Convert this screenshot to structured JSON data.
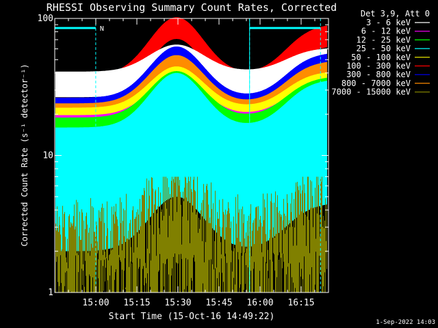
{
  "chart_data": {
    "type": "line",
    "title": "RHESSI Observing Summary Count Rates, Corrected",
    "xlabel": "Start Time (15-Oct-16 14:49:22)",
    "ylabel": "Corrected Count Rate (s⁻¹ detector⁻¹)",
    "yscale": "log",
    "ylim": [
      1,
      100
    ],
    "y_ticks": [
      {
        "v": 1,
        "label": "1"
      },
      {
        "v": 10,
        "label": "10"
      },
      {
        "v": 100,
        "label": "100"
      }
    ],
    "x_range_min": [
      -4.37,
      95.63
    ],
    "x_ticks": [
      {
        "label": "15:00",
        "t": 10.63
      },
      {
        "label": "15:15",
        "t": 25.63
      },
      {
        "label": "15:30",
        "t": 40.63
      },
      {
        "label": "15:45",
        "t": 55.63
      },
      {
        "label": "16:00",
        "t": 70.63
      },
      {
        "label": "16:15",
        "t": 85.63
      }
    ],
    "legend_header": "Det 3,9, Att 0",
    "series": [
      {
        "name": "3 - 6 keV",
        "color": "#ffffff",
        "base": 33,
        "peak": 52,
        "noise": 0.06,
        "lower": false
      },
      {
        "name": "6 - 12 keV",
        "color": "#ff00ff",
        "base": 12,
        "peak": 23,
        "noise": 0.16,
        "lower": true
      },
      {
        "name": "12 - 25 keV",
        "color": "#00ff00",
        "base": 11,
        "peak": 24,
        "noise": 0.18,
        "lower": true
      },
      {
        "name": "25 - 50 keV",
        "color": "#00ffff",
        "base": 8,
        "peak": 20,
        "noise": 0.25,
        "lower": true
      },
      {
        "name": "50 - 100 keV",
        "color": "#ffff00",
        "base": 18,
        "peak": 36,
        "noise": 0.06,
        "lower": false
      },
      {
        "name": "100 - 300 keV",
        "color": "#ff0000",
        "base": 32,
        "peak": 85,
        "noise": 0.05,
        "lower": false
      },
      {
        "name": "300 - 800 keV",
        "color": "#0000ff",
        "base": 22,
        "peak": 52,
        "noise": 0.05,
        "lower": false
      },
      {
        "name": "800 - 7000 keV",
        "color": "#ff8c00",
        "base": 20,
        "peak": 45,
        "noise": 0.05,
        "lower": false
      },
      {
        "name": "7000 - 15000 keV",
        "color": "#808000",
        "base": 2.5,
        "peak": 6,
        "noise": 0,
        "lower": false
      }
    ],
    "markers": {
      "saa_label": "N"
    },
    "timestamp": "1-Sep-2022 14:03"
  }
}
